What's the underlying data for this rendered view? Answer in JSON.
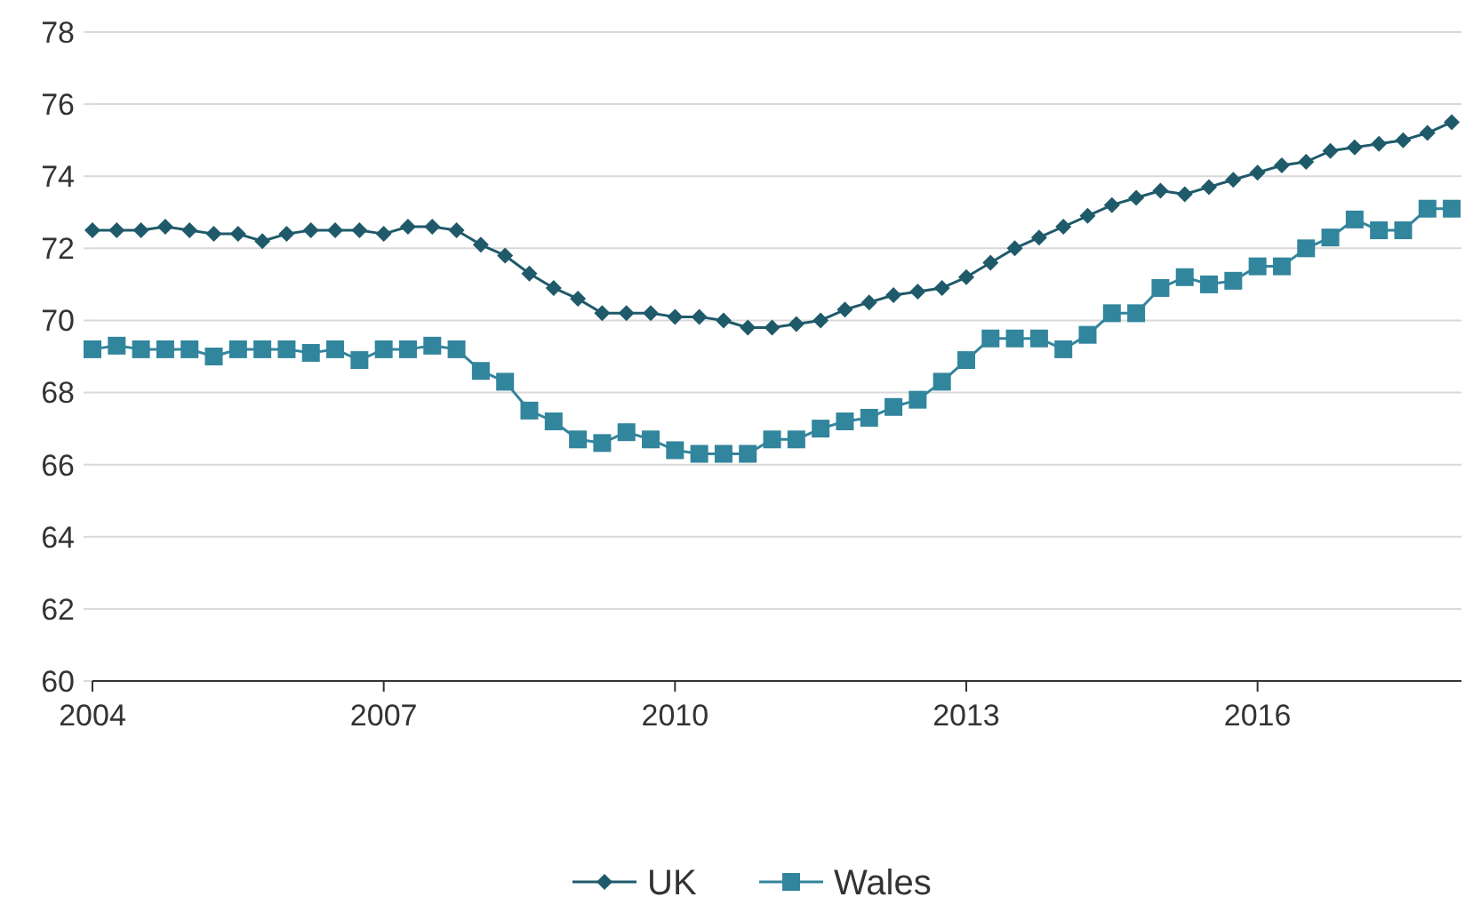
{
  "chart_data": {
    "type": "line",
    "x": [
      2004,
      2004.25,
      2004.5,
      2004.75,
      2005,
      2005.25,
      2005.5,
      2005.75,
      2006,
      2006.25,
      2006.5,
      2006.75,
      2007,
      2007.25,
      2007.5,
      2007.75,
      2008,
      2008.25,
      2008.5,
      2008.75,
      2009,
      2009.25,
      2009.5,
      2009.75,
      2010,
      2010.25,
      2010.5,
      2010.75,
      2011,
      2011.25,
      2011.5,
      2011.75,
      2012,
      2012.25,
      2012.5,
      2012.75,
      2013,
      2013.25,
      2013.5,
      2013.75,
      2014,
      2014.25,
      2014.5,
      2014.75,
      2015,
      2015.25,
      2015.5,
      2015.75,
      2016,
      2016.25,
      2016.5,
      2016.75,
      2017,
      2017.25,
      2017.5,
      2017.75,
      2018
    ],
    "series": [
      {
        "name": "UK",
        "color": "#1f5a6a",
        "marker": "diamond",
        "values": [
          72.5,
          72.5,
          72.5,
          72.6,
          72.5,
          72.4,
          72.4,
          72.2,
          72.4,
          72.5,
          72.5,
          72.5,
          72.4,
          72.6,
          72.6,
          72.5,
          72.1,
          71.8,
          71.3,
          70.9,
          70.6,
          70.2,
          70.2,
          70.2,
          70.1,
          70.1,
          70.0,
          69.8,
          69.8,
          69.9,
          70.0,
          70.3,
          70.5,
          70.7,
          70.8,
          70.9,
          71.2,
          71.6,
          72.0,
          72.3,
          72.6,
          72.9,
          73.2,
          73.4,
          73.6,
          73.5,
          73.7,
          73.9,
          74.1,
          74.3,
          74.4,
          74.7,
          74.8,
          74.9,
          75.0,
          75.2,
          75.5
        ]
      },
      {
        "name": "Wales",
        "color": "#31859c",
        "marker": "square",
        "values": [
          69.2,
          69.3,
          69.2,
          69.2,
          69.2,
          69.0,
          69.2,
          69.2,
          69.2,
          69.1,
          69.2,
          68.9,
          69.2,
          69.2,
          69.3,
          69.2,
          68.6,
          68.3,
          67.5,
          67.2,
          66.7,
          66.6,
          66.9,
          66.7,
          66.4,
          66.3,
          66.3,
          66.3,
          66.7,
          66.7,
          67.0,
          67.2,
          67.3,
          67.6,
          67.8,
          68.3,
          68.9,
          69.5,
          69.5,
          69.5,
          69.2,
          69.6,
          70.2,
          70.2,
          70.9,
          71.2,
          71.0,
          71.1,
          71.5,
          71.5,
          72.0,
          72.3,
          72.8,
          72.5,
          72.5,
          73.1,
          73.1
        ]
      }
    ],
    "xlim": [
      2004,
      2018.1
    ],
    "xticks": [
      2004,
      2007,
      2010,
      2013,
      2016
    ],
    "ylim": [
      60,
      78
    ],
    "yticks": [
      60,
      62,
      64,
      66,
      68,
      70,
      72,
      74,
      76,
      78
    ],
    "grid": "y",
    "legend": "bottom"
  }
}
